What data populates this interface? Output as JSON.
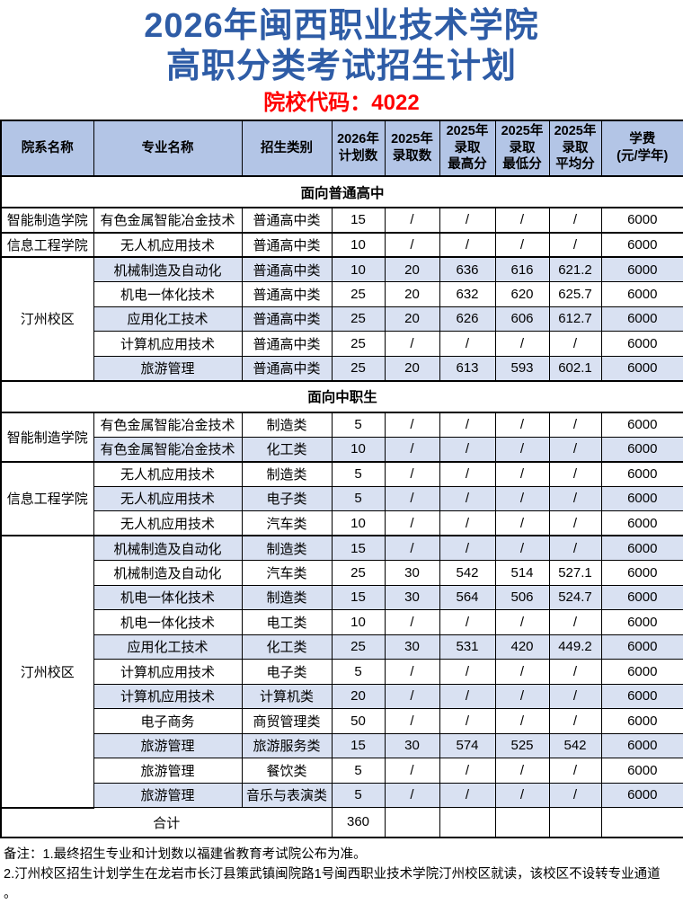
{
  "title": {
    "line1": "2026年闽西职业技术学院",
    "line2": "高职分类考试招生计划",
    "code": "院校代码：4022"
  },
  "colors": {
    "title_blue": "#2E5CA6",
    "code_red": "#FF0000",
    "header_bg": "#B3C5E6",
    "band_bg": "#D9E1F2",
    "border": "#000000"
  },
  "table": {
    "columns": [
      "院系名称",
      "专业名称",
      "招生类别",
      "2026年\n计划数",
      "2025年\n录取数",
      "2025年\n录取\n最高分",
      "2025年\n录取\n最低分",
      "2025年\n录取\n平均分",
      "学费\n(元/学年)"
    ],
    "sections": [
      {
        "title": "面向普通高中",
        "rows": [
          {
            "dept": "智能制造学院",
            "deptRows": 1,
            "major": "有色金属智能冶金技术",
            "category": "普通高中类",
            "values": [
              "15",
              "/",
              "/",
              "/",
              "/",
              "6000"
            ],
            "band": false,
            "groupEnd": true
          },
          {
            "dept": "信息工程学院",
            "deptRows": 1,
            "major": "无人机应用技术",
            "category": "普通高中类",
            "values": [
              "10",
              "/",
              "/",
              "/",
              "/",
              "6000"
            ],
            "band": false,
            "groupEnd": true
          },
          {
            "dept": "汀州校区",
            "deptRows": 5,
            "major": "机械制造及自动化",
            "category": "普通高中类",
            "values": [
              "10",
              "20",
              "636",
              "616",
              "621.2",
              "6000"
            ],
            "band": true
          },
          {
            "major": "机电一体化技术",
            "category": "普通高中类",
            "values": [
              "25",
              "20",
              "632",
              "620",
              "625.7",
              "6000"
            ],
            "band": false
          },
          {
            "major": "应用化工技术",
            "category": "普通高中类",
            "values": [
              "25",
              "20",
              "626",
              "606",
              "612.7",
              "6000"
            ],
            "band": true
          },
          {
            "major": "计算机应用技术",
            "category": "普通高中类",
            "values": [
              "25",
              "/",
              "/",
              "/",
              "/",
              "6000"
            ],
            "band": false
          },
          {
            "major": "旅游管理",
            "category": "普通高中类",
            "values": [
              "25",
              "20",
              "613",
              "593",
              "602.1",
              "6000"
            ],
            "band": true
          }
        ]
      },
      {
        "title": "面向中职生",
        "rows": [
          {
            "dept": "智能制造学院",
            "deptRows": 2,
            "major": "有色金属智能冶金技术",
            "category": "制造类",
            "values": [
              "5",
              "/",
              "/",
              "/",
              "/",
              "6000"
            ],
            "band": false
          },
          {
            "major": "有色金属智能冶金技术",
            "category": "化工类",
            "values": [
              "10",
              "/",
              "/",
              "/",
              "/",
              "6000"
            ],
            "band": true,
            "groupEnd": true
          },
          {
            "dept": "信息工程学院",
            "deptRows": 3,
            "major": "无人机应用技术",
            "category": "制造类",
            "values": [
              "5",
              "/",
              "/",
              "/",
              "/",
              "6000"
            ],
            "band": false
          },
          {
            "major": "无人机应用技术",
            "category": "电子类",
            "values": [
              "5",
              "/",
              "/",
              "/",
              "/",
              "6000"
            ],
            "band": true
          },
          {
            "major": "无人机应用技术",
            "category": "汽车类",
            "values": [
              "10",
              "/",
              "/",
              "/",
              "/",
              "6000"
            ],
            "band": false,
            "groupEnd": true
          },
          {
            "dept": "汀州校区",
            "deptRows": 11,
            "major": "机械制造及自动化",
            "category": "制造类",
            "values": [
              "15",
              "/",
              "/",
              "/",
              "/",
              "6000"
            ],
            "band": true
          },
          {
            "major": "机械制造及自动化",
            "category": "汽车类",
            "values": [
              "25",
              "30",
              "542",
              "514",
              "527.1",
              "6000"
            ],
            "band": false
          },
          {
            "major": "机电一体化技术",
            "category": "制造类",
            "values": [
              "15",
              "30",
              "564",
              "506",
              "524.7",
              "6000"
            ],
            "band": true
          },
          {
            "major": "机电一体化技术",
            "category": "电工类",
            "values": [
              "10",
              "/",
              "/",
              "/",
              "/",
              "6000"
            ],
            "band": false
          },
          {
            "major": "应用化工技术",
            "category": "化工类",
            "values": [
              "25",
              "30",
              "531",
              "420",
              "449.2",
              "6000"
            ],
            "band": true
          },
          {
            "major": "计算机应用技术",
            "category": "电子类",
            "values": [
              "5",
              "/",
              "/",
              "/",
              "/",
              "6000"
            ],
            "band": false
          },
          {
            "major": "计算机应用技术",
            "category": "计算机类",
            "values": [
              "20",
              "/",
              "/",
              "/",
              "/",
              "6000"
            ],
            "band": true
          },
          {
            "major": "电子商务",
            "category": "商贸管理类",
            "values": [
              "50",
              "/",
              "/",
              "/",
              "/",
              "6000"
            ],
            "band": false
          },
          {
            "major": "旅游管理",
            "category": "旅游服务类",
            "values": [
              "15",
              "30",
              "574",
              "525",
              "542",
              "6000"
            ],
            "band": true
          },
          {
            "major": "旅游管理",
            "category": "餐饮类",
            "values": [
              "5",
              "/",
              "/",
              "/",
              "/",
              "6000"
            ],
            "band": false
          },
          {
            "major": "旅游管理",
            "category": "音乐与表演类",
            "values": [
              "5",
              "/",
              "/",
              "/",
              "/",
              "6000"
            ],
            "band": true
          }
        ]
      }
    ],
    "total": {
      "label": "合计",
      "plan": "360",
      "empty": [
        "",
        "",
        "",
        "",
        ""
      ]
    }
  },
  "notes": [
    "备注：1.最终招生专业和计划数以福建省教育考试院公布为准。",
    "2.汀州校区招生计划学生在龙岩市长汀县策武镇闽院路1号闽西职业技术学院汀州校区就读，该校区不设转专业通道",
    "。"
  ]
}
